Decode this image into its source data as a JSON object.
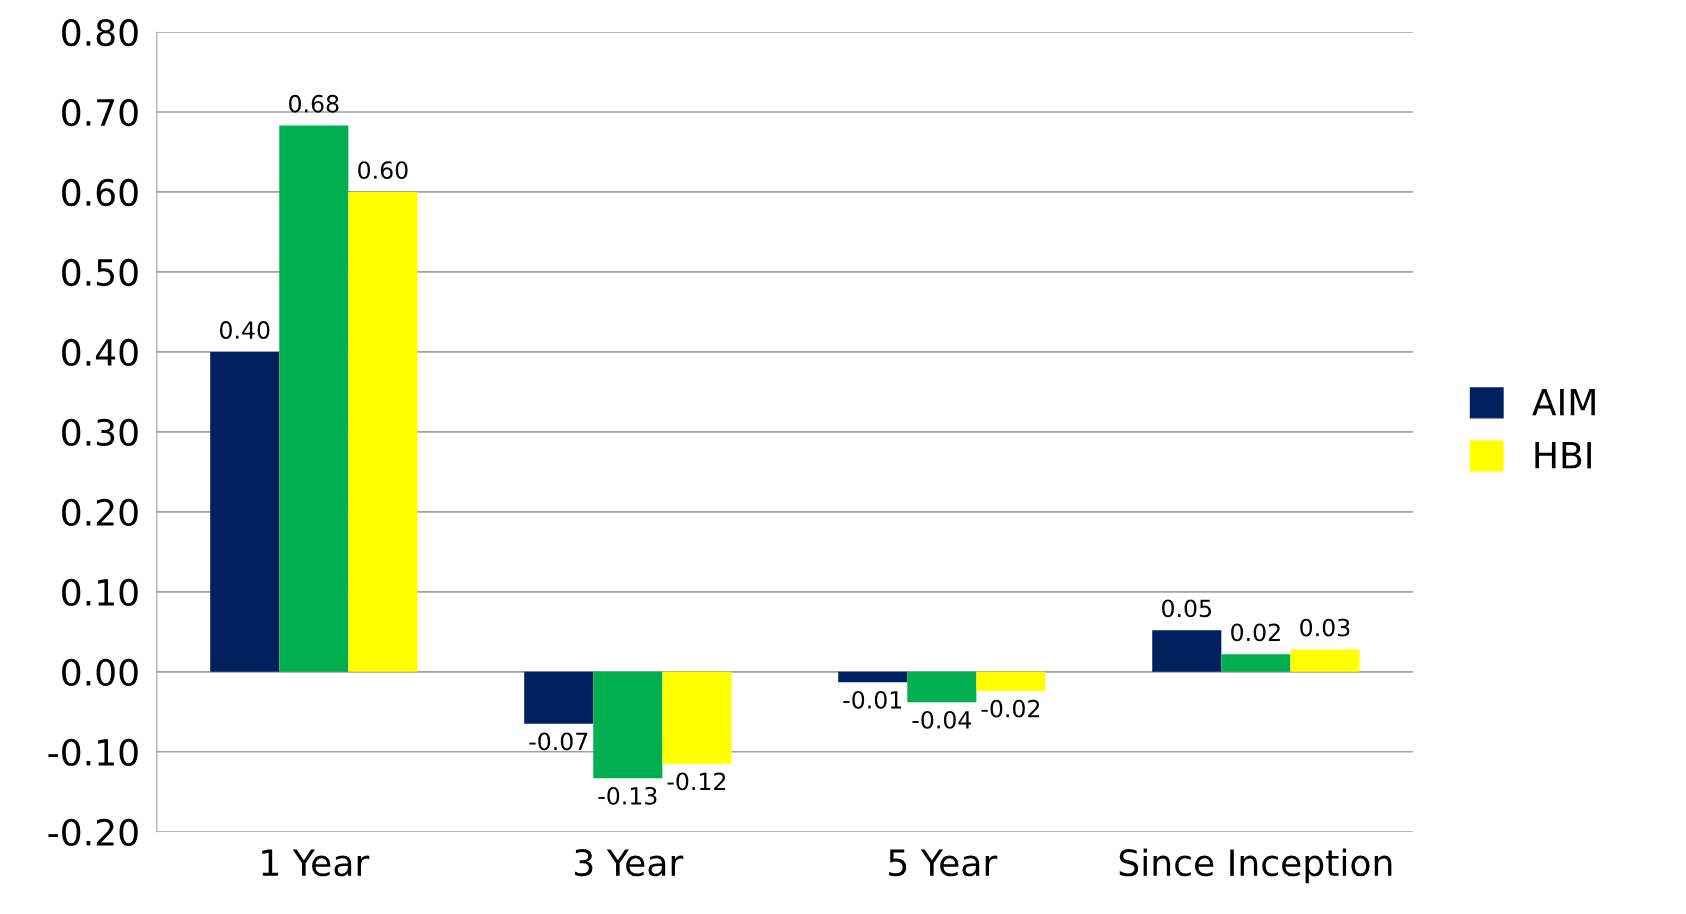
{
  "chart_data": {
    "type": "bar",
    "categories": [
      "1 Year",
      "3 Year",
      "5 Year",
      "Since Inception"
    ],
    "series": [
      {
        "name": "AIM",
        "color": "#002060",
        "values": [
          0.4,
          -0.065,
          -0.013,
          0.052
        ],
        "value_labels": [
          "0.40",
          "-0.07",
          "-0.01",
          "0.05"
        ]
      },
      {
        "color": "#00b050",
        "values": [
          0.683,
          -0.133,
          -0.038,
          0.022
        ],
        "value_labels": [
          "0.68",
          "-0.13",
          "-0.04",
          "0.02"
        ]
      },
      {
        "name": "HBI",
        "color": "#ffff00",
        "values": [
          0.6,
          -0.115,
          -0.024,
          0.028
        ],
        "value_labels": [
          "0.60",
          "-0.12",
          "-0.02",
          "0.03"
        ]
      }
    ],
    "ylim": [
      -0.2,
      0.8
    ],
    "yticks": [
      {
        "value": -0.2,
        "label": "-0.20"
      },
      {
        "value": -0.1,
        "label": "-0.10"
      },
      {
        "value": 0,
        "label": "0.00"
      },
      {
        "value": 0.1,
        "label": "0.10"
      },
      {
        "value": 0.2,
        "label": "0.20"
      },
      {
        "value": 0.3,
        "label": "0.30"
      },
      {
        "value": 0.4,
        "label": "0.40"
      },
      {
        "value": 0.5,
        "label": "0.50"
      },
      {
        "value": 0.6,
        "label": "0.60"
      },
      {
        "value": 0.7,
        "label": "0.70"
      },
      {
        "value": 0.8,
        "label": "0.80"
      }
    ],
    "grid": "y",
    "legend": "right"
  }
}
